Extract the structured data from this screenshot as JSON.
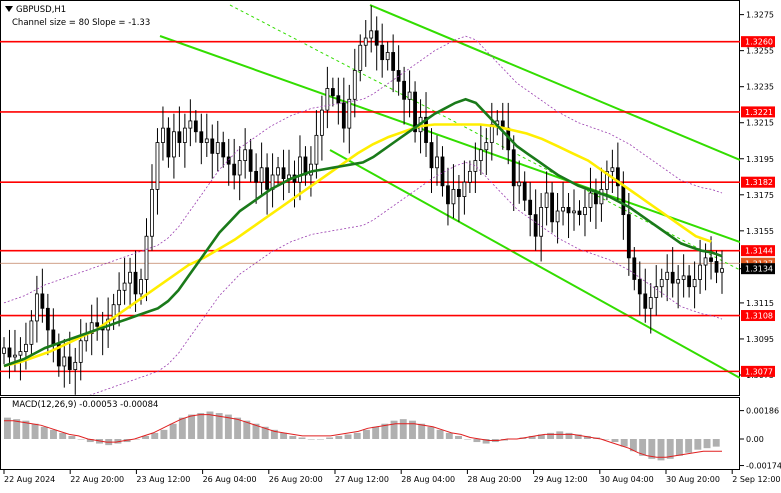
{
  "chart_data": {
    "type": "candlestick",
    "title": "GBPUSD,H1",
    "subtitle": "Channel size = 80 Slope = -1.33",
    "symbol_icon": "triangle-down-icon",
    "ylim": [
      1.3065,
      1.3282
    ],
    "y_ticks": [
      "1.3275",
      "1.3255",
      "1.3235",
      "1.3215",
      "1.3195",
      "1.3175",
      "1.3155",
      "1.3134",
      "1.3115",
      "1.3095",
      "1.3075"
    ],
    "x_ticks": [
      "22 Aug 2024",
      "22 Aug 20:00",
      "23 Aug 12:00",
      "26 Aug 04:00",
      "26 Aug 20:00",
      "27 Aug 12:00",
      "28 Aug 04:00",
      "28 Aug 20:00",
      "29 Aug 12:00",
      "30 Aug 04:00",
      "30 Aug 20:00",
      "2 Sep 12:00"
    ],
    "current_price": "1.3134",
    "hidden_price_tag": "1.3137",
    "levels": [
      "1.3260",
      "1.3221",
      "1.3182",
      "1.3144",
      "1.3108",
      "1.3077"
    ],
    "candle_close": [
      1.309,
      1.3085,
      1.3086,
      1.3088,
      1.3092,
      1.3105,
      1.312,
      1.3112,
      1.31,
      1.3092,
      1.308,
      1.3085,
      1.3078,
      1.3082,
      1.3094,
      1.3098,
      1.3104,
      1.3102,
      1.31,
      1.3106,
      1.3114,
      1.3122,
      1.3126,
      1.3132,
      1.312,
      1.3128,
      1.3152,
      1.3178,
      1.3204,
      1.3212,
      1.3196,
      1.321,
      1.3204,
      1.3212,
      1.3216,
      1.321,
      1.3204,
      1.3206,
      1.3198,
      1.3204,
      1.3196,
      1.3192,
      1.3186,
      1.3194,
      1.32,
      1.3188,
      1.3182,
      1.319,
      1.3178,
      1.3186,
      1.319,
      1.3184,
      1.3186,
      1.3182,
      1.3196,
      1.3186,
      1.3192,
      1.3208,
      1.3222,
      1.3234,
      1.323,
      1.3226,
      1.3212,
      1.3228,
      1.3244,
      1.3258,
      1.3262,
      1.3266,
      1.3258,
      1.325,
      1.3254,
      1.3244,
      1.3238,
      1.3228,
      1.3232,
      1.321,
      1.3218,
      1.3204,
      1.319,
      1.3196,
      1.318,
      1.317,
      1.3178,
      1.3174,
      1.3182,
      1.3188,
      1.3194,
      1.32,
      1.3204,
      1.3214,
      1.3216,
      1.3212,
      1.32,
      1.318,
      1.3182,
      1.3172,
      1.3164,
      1.3152,
      1.3168,
      1.3176,
      1.316,
      1.3166,
      1.3168,
      1.3165,
      1.3166,
      1.3164,
      1.3168,
      1.3176,
      1.317,
      1.3178,
      1.3188,
      1.319,
      1.318,
      1.3164,
      1.314,
      1.3128,
      1.312,
      1.3112,
      1.3118,
      1.3124,
      1.3128,
      1.3132,
      1.3126,
      1.3128,
      1.313,
      1.3124,
      1.3128,
      1.3136,
      1.314,
      1.3138,
      1.3132,
      1.3134
    ],
    "ma_fast": [
      1.308,
      1.3082,
      1.3084,
      1.3087,
      1.309,
      1.3092,
      1.3094,
      1.3096,
      1.3098,
      1.31,
      1.3102,
      1.3104,
      1.3106,
      1.3108,
      1.311,
      1.3112,
      1.3116,
      1.3122,
      1.313,
      1.3138,
      1.3146,
      1.3154,
      1.316,
      1.3166,
      1.317,
      1.3174,
      1.3178,
      1.3181,
      1.3184,
      1.3186,
      1.3188,
      1.3189,
      1.319,
      1.3191,
      1.3192,
      1.3193,
      1.3196,
      1.32,
      1.3204,
      1.3208,
      1.3212,
      1.3216,
      1.322,
      1.3223,
      1.3226,
      1.3228,
      1.3226,
      1.322,
      1.3214,
      1.3208,
      1.3202,
      1.3198,
      1.3194,
      1.319,
      1.3186,
      1.3183,
      1.318,
      1.3178,
      1.3176,
      1.3174,
      1.3171,
      1.3168,
      1.3164,
      1.316,
      1.3156,
      1.3152,
      1.3148,
      1.3146,
      1.3144,
      1.3143,
      1.3141
    ],
    "ma_slow": [
      1.308,
      1.3082,
      1.3085,
      1.3088,
      1.3092,
      1.3096,
      1.31,
      1.3106,
      1.3112,
      1.3118,
      1.3124,
      1.313,
      1.3136,
      1.314,
      1.3145,
      1.315,
      1.3156,
      1.3162,
      1.3168,
      1.3174,
      1.318,
      1.3186,
      1.3192,
      1.3198,
      1.3203,
      1.3207,
      1.321,
      1.3213,
      1.3214,
      1.3214,
      1.3214,
      1.3214,
      1.3213,
      1.3211,
      1.3209,
      1.3206,
      1.3202,
      1.3198,
      1.3194,
      1.3188,
      1.3182,
      1.3176,
      1.317,
      1.3164,
      1.3158,
      1.3152,
      1.3149
    ],
    "macd": {
      "label": "MACD(12,26,9) -0.00053 -0.00084",
      "ylim": [
        -0.0019,
        0.0019
      ],
      "y_ticks": [
        "0.00186",
        "0.00",
        "-0.00174"
      ],
      "histogram": [
        0.0014,
        0.0013,
        0.0012,
        0.001,
        0.0008,
        0.0006,
        0.0004,
        0.0002,
        0.0,
        -0.0002,
        -0.0003,
        -0.0004,
        -0.0003,
        -0.0002,
        0.0,
        0.0002,
        0.0004,
        0.0006,
        0.001,
        0.0014,
        0.0016,
        0.0017,
        0.0018,
        0.0017,
        0.0016,
        0.0014,
        0.0012,
        0.001,
        0.0008,
        0.0006,
        0.0004,
        0.0002,
        0.0001,
        0.0,
        0.0,
        0.0001,
        0.0002,
        0.0003,
        0.0004,
        0.0006,
        0.0008,
        0.001,
        0.0012,
        0.0013,
        0.0012,
        0.001,
        0.0008,
        0.0006,
        0.0004,
        0.0002,
        0.0,
        -0.0002,
        -0.0003,
        -0.0002,
        -0.0001,
        0.0,
        0.0001,
        0.0002,
        0.0003,
        0.0004,
        0.0005,
        0.0004,
        0.0003,
        0.0002,
        0.0001,
        0.0,
        -0.0002,
        -0.0005,
        -0.0008,
        -0.0011,
        -0.0013,
        -0.0014,
        -0.0013,
        -0.0011,
        -0.0009,
        -0.0007,
        -0.0006,
        -0.0005
      ],
      "signal": [
        0.0012,
        0.0012,
        0.0011,
        0.001,
        0.0009,
        0.0007,
        0.0005,
        0.0003,
        0.0002,
        0.0,
        -0.0001,
        -0.0002,
        -0.0002,
        -0.0001,
        0.0,
        0.0002,
        0.0004,
        0.0007,
        0.001,
        0.0013,
        0.0015,
        0.0016,
        0.0016,
        0.0015,
        0.0014,
        0.0013,
        0.0011,
        0.0009,
        0.0007,
        0.0005,
        0.0004,
        0.0003,
        0.0002,
        0.0002,
        0.0002,
        0.0002,
        0.0003,
        0.0004,
        0.0005,
        0.0007,
        0.0008,
        0.0009,
        0.001,
        0.001,
        0.001,
        0.0009,
        0.0008,
        0.0006,
        0.0004,
        0.0003,
        0.0001,
        0.0,
        -0.0001,
        -0.0001,
        0.0,
        0.0,
        0.0001,
        0.0002,
        0.0003,
        0.0003,
        0.0003,
        0.0003,
        0.0002,
        0.0001,
        0.0,
        -0.0002,
        -0.0004,
        -0.0006,
        -0.0009,
        -0.0011,
        -0.0012,
        -0.0012,
        -0.0011,
        -0.001,
        -0.0009,
        -0.0008,
        -0.0008,
        -0.0008
      ]
    },
    "colors": {
      "level": "#ff0000",
      "level_tag": "#ff0000",
      "channel": "#33dd00",
      "ma_fast": "#1a7a1a",
      "ma_slow": "#ffee00",
      "bands": "#9b3fb0",
      "macd_hist": "#b0b0b0",
      "macd_signal": "#e02020",
      "current_tag": "#000000"
    }
  }
}
